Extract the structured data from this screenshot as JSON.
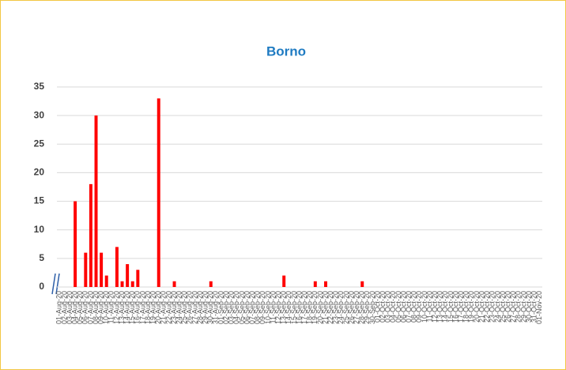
{
  "chart_data": {
    "type": "bar",
    "title": "Borno",
    "categories": [
      "01-Aug-20",
      "02-Aug-20",
      "03-Aug-20",
      "04-Aug-20",
      "05-Aug-20",
      "06-Aug-20",
      "07-Aug-20",
      "08-Aug-20",
      "09-Aug-20",
      "10-Aug-20",
      "11-Aug-20",
      "12-Aug-20",
      "13-Aug-20",
      "14-Aug-20",
      "15-Aug-20",
      "16-Aug-20",
      "17-Aug-20",
      "18-Aug-20",
      "19-Aug-20",
      "20-Aug-20",
      "21-Aug-20",
      "22-Aug-20",
      "23-Aug-20",
      "24-Aug-20",
      "25-Aug-20",
      "26-Aug-20",
      "27-Aug-20",
      "28-Aug-20",
      "29-Aug-20",
      "30-Aug-20",
      "31-Aug-20",
      "01-Sep-20",
      "02-Sep-20",
      "03-Sep-20",
      "04-Sep-20",
      "05-Sep-20",
      "06-Sep-20",
      "07-Sep-20",
      "08-Sep-20",
      "09-Sep-20",
      "10-Sep-20",
      "11-Sep-20",
      "12-Sep-20",
      "13-Sep-20",
      "14-Sep-20",
      "15-Sep-20",
      "16-Sep-20",
      "17-Sep-20",
      "18-Sep-20",
      "19-Sep-20",
      "20-Sep-20",
      "21-Sep-20",
      "22-Sep-20",
      "23-Sep-20",
      "24-Sep-20",
      "25-Sep-20",
      "26-Sep-20",
      "27-Sep-20",
      "28-Sep-20",
      "29-Sep-20",
      "30-Sep-20",
      "01-Oct-20",
      "02-Oct-20",
      "03-Oct-20",
      "04-Oct-20",
      "05-Oct-20",
      "06-Oct-20",
      "07-Oct-20",
      "08-Oct-20",
      "09-Oct-20",
      "10-Oct-20",
      "11-Oct-20",
      "12-Oct-20",
      "13-Oct-20",
      "14-Oct-20",
      "15-Oct-20",
      "16-Oct-20",
      "17-Oct-20",
      "18-Oct-20",
      "19-Oct-20",
      "20-Oct-20",
      "21-Oct-20",
      "22-Oct-20",
      "23-Oct-20",
      "24-Oct-20",
      "25-Oct-20",
      "26-Oct-20",
      "27-Oct-20",
      "28-Oct-20",
      "29-Oct-20",
      "30-Oct-20",
      "31-Oct-20",
      "01-Nov-20"
    ],
    "values": [
      0,
      0,
      0,
      15,
      0,
      6,
      18,
      30,
      6,
      2,
      0,
      7,
      1,
      4,
      1,
      3,
      0,
      0,
      0,
      33,
      0,
      0,
      1,
      0,
      0,
      0,
      0,
      0,
      0,
      1,
      0,
      0,
      0,
      0,
      0,
      0,
      0,
      0,
      0,
      0,
      0,
      0,
      0,
      2,
      0,
      0,
      0,
      0,
      0,
      1,
      0,
      1,
      0,
      0,
      0,
      0,
      0,
      0,
      1,
      0,
      0,
      0,
      0,
      0,
      0,
      0,
      0,
      0,
      0,
      0,
      0,
      0,
      0,
      0,
      0,
      0,
      0,
      0,
      0,
      0,
      0,
      0,
      0,
      0,
      0,
      0,
      0,
      0,
      0,
      0,
      0,
      0,
      0
    ],
    "color": "#ff0000",
    "ylim": [
      0,
      35
    ],
    "yticks": [
      0,
      5,
      10,
      15,
      20,
      25,
      30,
      35
    ],
    "grid": true
  }
}
